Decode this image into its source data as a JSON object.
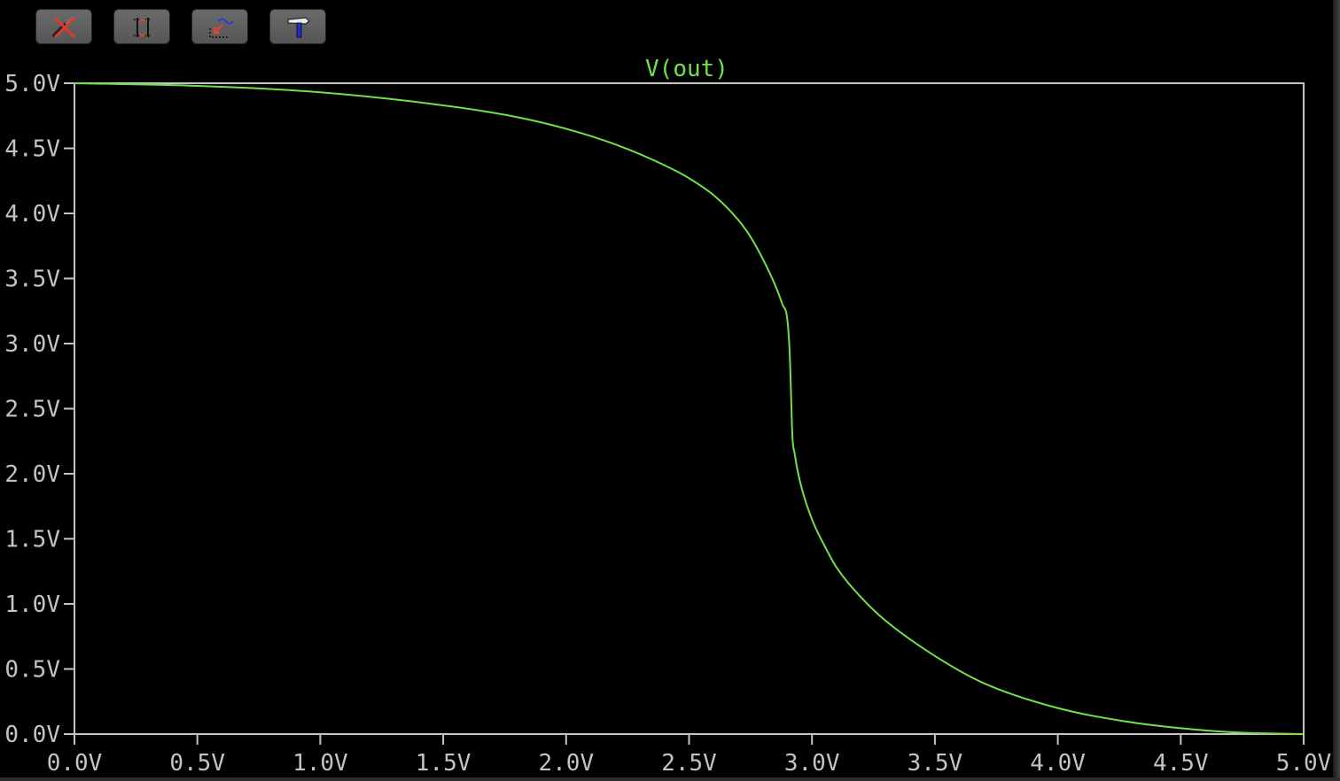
{
  "toolbar": {
    "buttons": [
      {
        "icon": "cursor-probe-off-icon"
      },
      {
        "icon": "zoom-extents-icon"
      },
      {
        "icon": "zoom-back-icon"
      },
      {
        "icon": "hammer-icon"
      }
    ]
  },
  "colors": {
    "background": "#000000",
    "axis": "#c4c4c4",
    "trace": "#6fe24a"
  },
  "chart_data": {
    "type": "line",
    "title": "",
    "xlabel": "",
    "ylabel": "",
    "grid": false,
    "legend": "top-center",
    "xlim": [
      0,
      5
    ],
    "ylim": [
      0,
      5
    ],
    "xticks": [
      "0.0V",
      "0.5V",
      "1.0V",
      "1.5V",
      "2.0V",
      "2.5V",
      "3.0V",
      "3.5V",
      "4.0V",
      "4.5V",
      "5.0V"
    ],
    "yticks": [
      "0.0V",
      "0.5V",
      "1.0V",
      "1.5V",
      "2.0V",
      "2.5V",
      "3.0V",
      "3.5V",
      "4.0V",
      "4.5V",
      "5.0V"
    ],
    "series": [
      {
        "name": "V(out)",
        "color": "#6fe24a",
        "x": [
          0.0,
          0.5,
          1.0,
          1.5,
          1.8,
          2.0,
          2.2,
          2.4,
          2.5,
          2.6,
          2.7,
          2.75,
          2.8,
          2.85,
          2.88,
          2.9,
          2.91,
          2.915,
          2.92,
          2.93,
          2.95,
          3.0,
          3.05,
          3.1,
          3.2,
          3.3,
          3.5,
          3.7,
          4.0,
          4.3,
          4.5,
          4.7,
          4.85,
          5.0
        ],
        "y": [
          5.0,
          4.98,
          4.93,
          4.83,
          4.74,
          4.65,
          4.53,
          4.37,
          4.27,
          4.14,
          3.95,
          3.82,
          3.65,
          3.45,
          3.3,
          3.18,
          2.9,
          2.6,
          2.3,
          2.15,
          1.95,
          1.65,
          1.45,
          1.28,
          1.05,
          0.87,
          0.6,
          0.39,
          0.2,
          0.09,
          0.045,
          0.015,
          0.005,
          0.0
        ]
      }
    ]
  }
}
